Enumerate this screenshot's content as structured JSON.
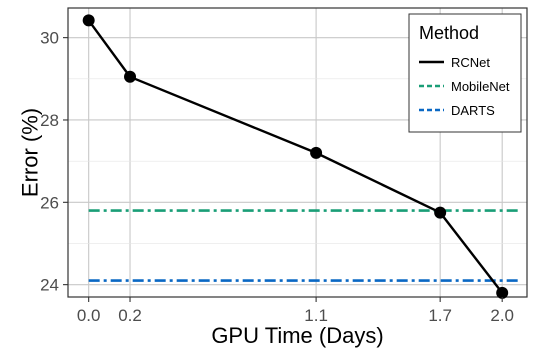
{
  "chart_data": {
    "type": "line",
    "xlabel": "GPU Time (Days)",
    "ylabel": "Error (%)",
    "xlim": [
      -0.1,
      2.12
    ],
    "ylim": [
      23.7,
      30.72
    ],
    "x_ticks": [
      0.0,
      0.2,
      1.1,
      1.7,
      2.0
    ],
    "x_tick_labels": [
      "0.0",
      "0.2",
      "1.1",
      "1.7",
      "2.0"
    ],
    "y_ticks": [
      24,
      26,
      28,
      30
    ],
    "y_tick_labels": [
      "24",
      "26",
      "28",
      "30"
    ],
    "grid": true,
    "legend": {
      "title": "Method",
      "position": "top-right",
      "entries": [
        {
          "name": "RCNet",
          "color": "#000000",
          "style": "solid"
        },
        {
          "name": "MobileNet",
          "color": "#1a9e77",
          "style": "dashed"
        },
        {
          "name": "DARTS",
          "color": "#0a68c4",
          "style": "dashed"
        }
      ]
    },
    "series": [
      {
        "name": "RCNet",
        "color": "#000000",
        "style": "solid-with-markers",
        "points": [
          {
            "x": 0.0,
            "y": 30.42
          },
          {
            "x": 0.2,
            "y": 29.05
          },
          {
            "x": 1.1,
            "y": 27.2
          },
          {
            "x": 1.7,
            "y": 25.75
          },
          {
            "x": 2.0,
            "y": 23.8
          }
        ]
      },
      {
        "name": "MobileNet",
        "color": "#1a9e77",
        "style": "dashdot",
        "constant": 25.8
      },
      {
        "name": "DARTS",
        "color": "#0a68c4",
        "style": "dashdot",
        "constant": 24.1
      }
    ]
  }
}
